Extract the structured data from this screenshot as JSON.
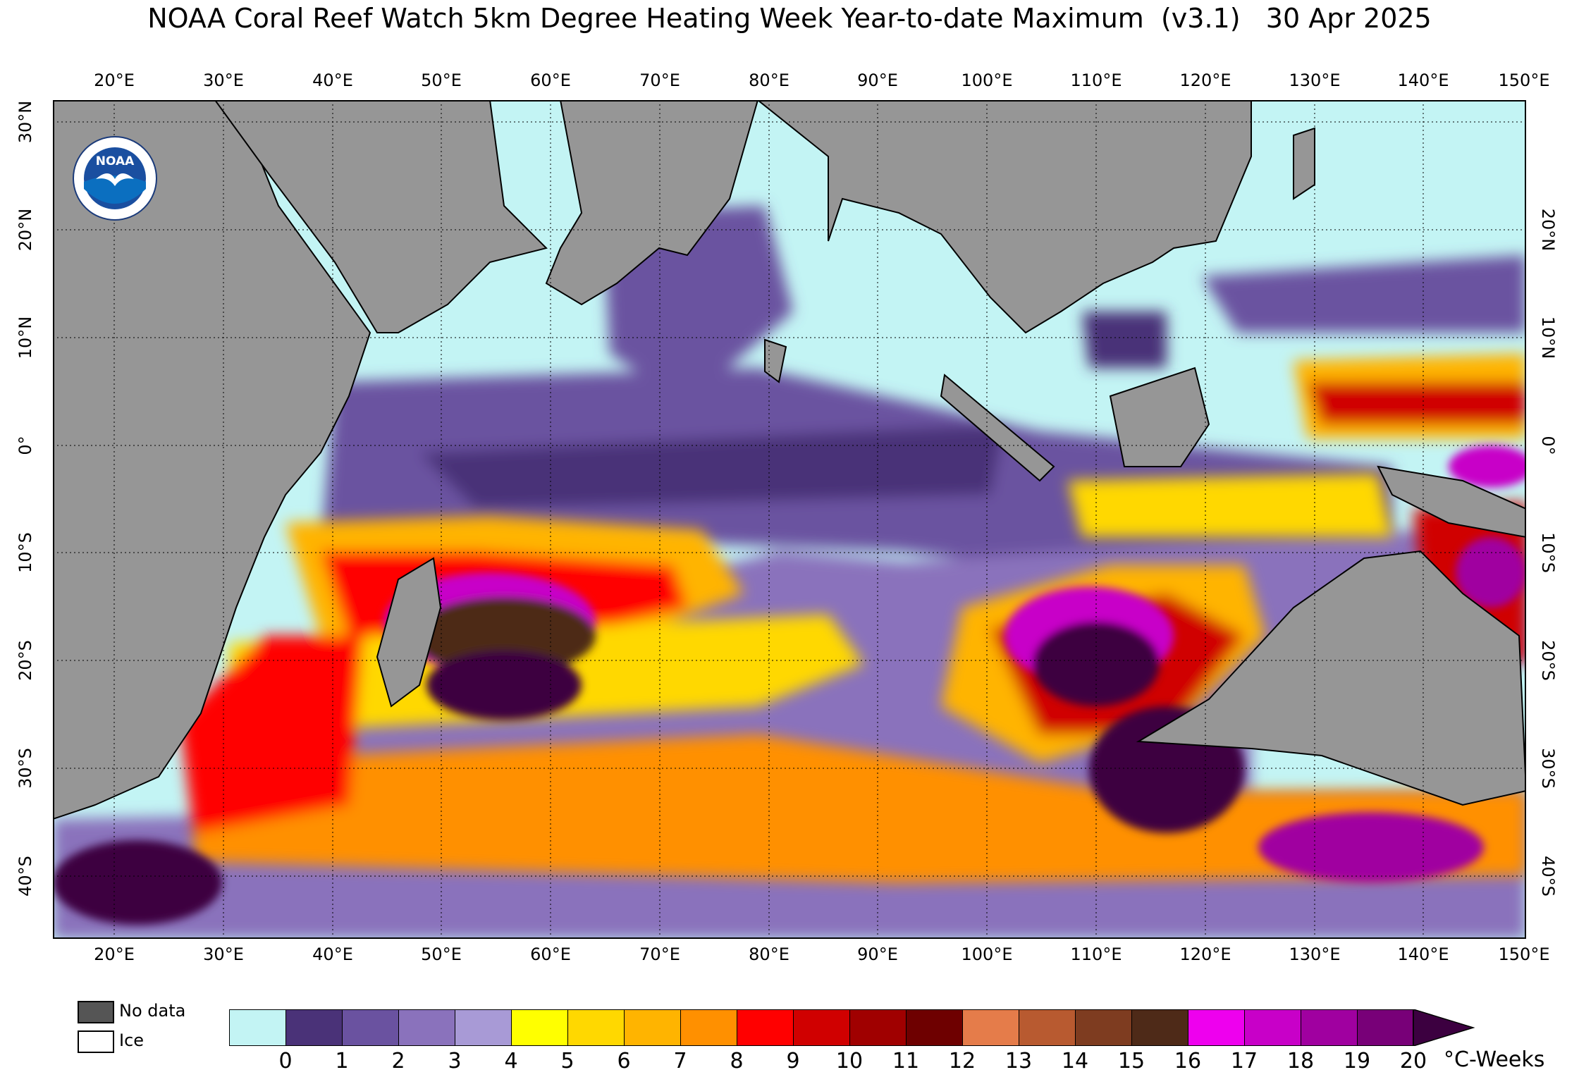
{
  "title": "NOAA Coral Reef Watch 5km Degree Heating Week Year-to-date Maximum  (v3.1)   30 Apr 2025",
  "axes": {
    "lon_labels": [
      "20°E",
      "30°E",
      "40°E",
      "50°E",
      "60°E",
      "70°E",
      "80°E",
      "90°E",
      "100°E",
      "110°E",
      "120°E",
      "130°E",
      "140°E",
      "150°E"
    ],
    "lat_labels": [
      "30°N",
      "20°N",
      "10°N",
      "0°",
      "10°S",
      "20°S",
      "30°S",
      "40°S"
    ]
  },
  "logo": {
    "text": "NOAA",
    "icon": "noaa-logo-icon"
  },
  "legend": {
    "nodata_label": "No data",
    "ice_label": "Ice",
    "nodata_color": "#555555",
    "ice_color": "#ffffff"
  },
  "colorbar": {
    "ticks": [
      "0",
      "1",
      "2",
      "3",
      "4",
      "5",
      "6",
      "7",
      "8",
      "9",
      "10",
      "11",
      "12",
      "13",
      "14",
      "15",
      "16",
      "17",
      "18",
      "19",
      "20"
    ],
    "colors": [
      "#c3f4f4",
      "#4a3278",
      "#6a52a0",
      "#8a72bc",
      "#a89ad6",
      "#ffff00",
      "#ffd800",
      "#ffb400",
      "#ff9000",
      "#ff0000",
      "#d00000",
      "#a00000",
      "#6e0000",
      "#e57c4a",
      "#b85a30",
      "#7e3c20",
      "#4e2a18",
      "#ee00ee",
      "#c800c8",
      "#a000a0",
      "#780078"
    ],
    "extend_color": "#3c0040",
    "units": "°C-Weeks"
  },
  "colors": {
    "land": "#969696",
    "ocean_zero": "#c3f4f4"
  }
}
